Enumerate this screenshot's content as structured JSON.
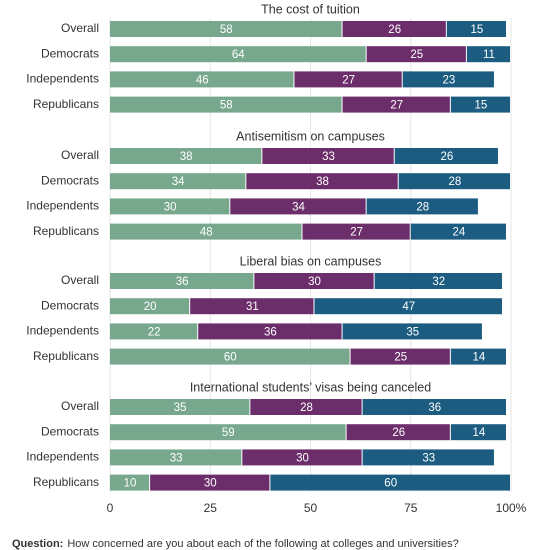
{
  "chart_data": [
    {
      "type": "bar",
      "title": "The cost of tuition",
      "categories": [
        "Overall",
        "Democrats",
        "Independents",
        "Republicans"
      ],
      "series": [
        {
          "color": "#77a88e",
          "values": [
            58,
            64,
            46,
            58
          ]
        },
        {
          "color": "#6c2e6a",
          "values": [
            26,
            25,
            27,
            27
          ]
        },
        {
          "color": "#1c5c80",
          "values": [
            15,
            11,
            23,
            15
          ]
        }
      ],
      "xlim": [
        0,
        100
      ]
    },
    {
      "type": "bar",
      "title": "Antisemitism on campuses",
      "categories": [
        "Overall",
        "Democrats",
        "Independents",
        "Republicans"
      ],
      "series": [
        {
          "color": "#77a88e",
          "values": [
            38,
            34,
            30,
            48
          ]
        },
        {
          "color": "#6c2e6a",
          "values": [
            33,
            38,
            34,
            27
          ]
        },
        {
          "color": "#1c5c80",
          "values": [
            26,
            28,
            28,
            24
          ]
        }
      ],
      "xlim": [
        0,
        100
      ]
    },
    {
      "type": "bar",
      "title": "Liberal bias on campuses",
      "categories": [
        "Overall",
        "Democrats",
        "Independents",
        "Republicans"
      ],
      "series": [
        {
          "color": "#77a88e",
          "values": [
            36,
            20,
            22,
            60
          ]
        },
        {
          "color": "#6c2e6a",
          "values": [
            30,
            31,
            36,
            25
          ]
        },
        {
          "color": "#1c5c80",
          "values": [
            32,
            47,
            35,
            14
          ]
        }
      ],
      "xlim": [
        0,
        100
      ]
    },
    {
      "type": "bar",
      "title": "International students’ visas being canceled",
      "categories": [
        "Overall",
        "Democrats",
        "Independents",
        "Republicans"
      ],
      "series": [
        {
          "color": "#77a88e",
          "values": [
            35,
            59,
            33,
            10
          ]
        },
        {
          "color": "#6c2e6a",
          "values": [
            28,
            26,
            30,
            30
          ]
        },
        {
          "color": "#1c5c80",
          "values": [
            36,
            14,
            33,
            60
          ]
        }
      ],
      "xlim": [
        0,
        100
      ],
      "xticks": [
        0,
        25,
        50,
        75,
        {
          "value": 100,
          "label": "100%"
        }
      ],
      "grid": true
    }
  ],
  "question_label": "Question:",
  "question": "How concerned are you about each of the following at colleges and universities?"
}
